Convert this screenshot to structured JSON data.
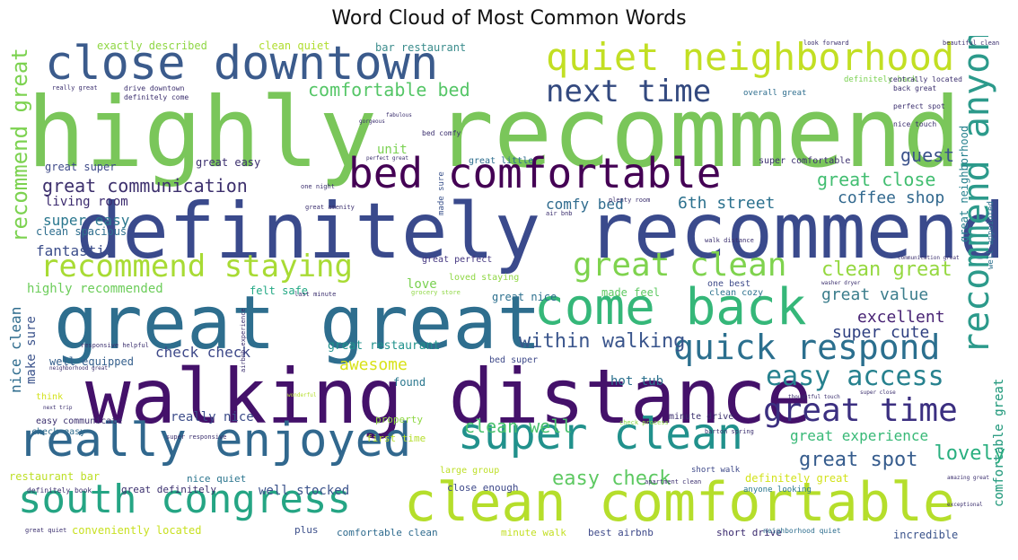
{
  "chart_data": {
    "type": "wordcloud",
    "title": "Word Cloud of Most Common Words",
    "background": "#ffffff",
    "colormap": "viridis",
    "words": [
      {
        "text": "highly recommend",
        "weight": 100,
        "color": "#7ac65a"
      },
      {
        "text": "definitely recommend",
        "weight": 80,
        "color": "#3a4a8c"
      },
      {
        "text": "walking distance",
        "weight": 80,
        "color": "#44116a"
      },
      {
        "text": "great great",
        "weight": 72,
        "color": "#2e6e8e"
      },
      {
        "text": "clean comfortable",
        "weight": 66,
        "color": "#b5de2b"
      },
      {
        "text": "close downtown",
        "weight": 54,
        "color": "#3b5b8c"
      },
      {
        "text": "come back",
        "weight": 54,
        "color": "#35b779"
      },
      {
        "text": "really enjoyed",
        "weight": 52,
        "color": "#31688e"
      },
      {
        "text": "bed comfortable",
        "weight": 46,
        "color": "#440154"
      },
      {
        "text": "super clean",
        "weight": 46,
        "color": "#21918c"
      },
      {
        "text": "quiet neighborhood",
        "weight": 42,
        "color": "#c2df23"
      },
      {
        "text": "south congress",
        "weight": 42,
        "color": "#25a584"
      },
      {
        "text": "recommend anyone",
        "weight": 40,
        "color": "#2c9a8b"
      },
      {
        "text": "recommend staying",
        "weight": 36,
        "color": "#a8db34"
      },
      {
        "text": "great clean",
        "weight": 36,
        "color": "#7fd34e"
      },
      {
        "text": "quick respond",
        "weight": 36,
        "color": "#2b6f8e"
      },
      {
        "text": "great time",
        "weight": 34,
        "color": "#3b2f80"
      },
      {
        "text": "next time",
        "weight": 32,
        "color": "#33497f"
      },
      {
        "text": "easy access",
        "weight": 30,
        "color": "#26818e"
      },
      {
        "text": "recommend great",
        "weight": 26,
        "color": "#7cd250"
      },
      {
        "text": "comfortable bed",
        "weight": 20,
        "color": "#55c667"
      },
      {
        "text": "great communication",
        "weight": 20,
        "color": "#3d306d"
      },
      {
        "text": "within walking",
        "weight": 22,
        "color": "#3a558c"
      },
      {
        "text": "easy check",
        "weight": 22,
        "color": "#5ec962"
      },
      {
        "text": "clean great",
        "weight": 20,
        "color": "#95d840"
      },
      {
        "text": "great close",
        "weight": 20,
        "color": "#42be71"
      },
      {
        "text": "great spot",
        "weight": 20,
        "color": "#365c8d"
      },
      {
        "text": "lovely",
        "weight": 20,
        "color": "#29af7f"
      },
      {
        "text": "clean well",
        "weight": 20,
        "color": "#4ac16d"
      },
      {
        "text": "guest",
        "weight": 18,
        "color": "#3b528b"
      },
      {
        "text": "excellent",
        "weight": 16,
        "color": "#482374"
      },
      {
        "text": "coffee shop",
        "weight": 16,
        "color": "#31688e"
      },
      {
        "text": "comfortable great",
        "weight": 14,
        "color": "#3fbc73"
      },
      {
        "text": "awesome",
        "weight": 18,
        "color": "#d8e219"
      },
      {
        "text": "super cute",
        "weight": 18,
        "color": "#2e3f80"
      },
      {
        "text": "great value",
        "weight": 18,
        "color": "#3b7d8c"
      },
      {
        "text": "great experience",
        "weight": 16,
        "color": "#38b977"
      },
      {
        "text": "6th street",
        "weight": 18,
        "color": "#2c718e"
      },
      {
        "text": "fantastic",
        "weight": 16,
        "color": "#3b4d8a"
      },
      {
        "text": "super easy",
        "weight": 16,
        "color": "#2a778e"
      },
      {
        "text": "comfy bed",
        "weight": 16,
        "color": "#2f6b8e"
      },
      {
        "text": "check check",
        "weight": 16,
        "color": "#3e4989"
      },
      {
        "text": "nice clean",
        "weight": 16,
        "color": "#2f6c8e"
      },
      {
        "text": "make sure",
        "weight": 14,
        "color": "#3a528b"
      },
      {
        "text": "living room",
        "weight": 14,
        "color": "#3b2a6e"
      },
      {
        "text": "love",
        "weight": 14,
        "color": "#7ad151"
      },
      {
        "text": "unit",
        "weight": 14,
        "color": "#7ad151"
      },
      {
        "text": "well stocked",
        "weight": 14,
        "color": "#3b528b"
      },
      {
        "text": "hot tub",
        "weight": 14,
        "color": "#2c718e"
      },
      {
        "text": "really nice",
        "weight": 14,
        "color": "#3d4d8a"
      },
      {
        "text": "highly recommended",
        "weight": 14,
        "color": "#6ccd5a"
      },
      {
        "text": "great restaurant",
        "weight": 13,
        "color": "#20928c"
      },
      {
        "text": "great super",
        "weight": 12,
        "color": "#3e4a89"
      },
      {
        "text": "great easy",
        "weight": 12,
        "color": "#3b2f6e"
      },
      {
        "text": "great neighborhood",
        "weight": 12,
        "color": "#26818e"
      },
      {
        "text": "comfortable great",
        "weight": 12,
        "color": "#2e9c86"
      },
      {
        "text": "made feel",
        "weight": 12,
        "color": "#5ec962"
      },
      {
        "text": "felt safe",
        "weight": 12,
        "color": "#22a884"
      },
      {
        "text": "restaurant bar",
        "weight": 12,
        "color": "#bddf26"
      },
      {
        "text": "conveniently located",
        "weight": 12,
        "color": "#c8e020"
      },
      {
        "text": "exactly described",
        "weight": 12,
        "color": "#8fd744"
      },
      {
        "text": "clean quiet",
        "weight": 12,
        "color": "#b0dd2f"
      },
      {
        "text": "bar restaurant",
        "weight": 12,
        "color": "#3a8c8c"
      },
      {
        "text": "clean spacious",
        "weight": 12,
        "color": "#2e6e8e"
      },
      {
        "text": "well equipped",
        "weight": 12,
        "color": "#35608d"
      },
      {
        "text": "great nice",
        "weight": 12,
        "color": "#2d708e"
      },
      {
        "text": "found",
        "weight": 12,
        "color": "#2a778e"
      },
      {
        "text": "definitely great",
        "weight": 12,
        "color": "#d2e21b"
      },
      {
        "text": "incredible",
        "weight": 12,
        "color": "#3a538b"
      },
      {
        "text": "comfortable clean",
        "weight": 11,
        "color": "#2f6b8e"
      },
      {
        "text": "nice quiet",
        "weight": 11,
        "color": "#2b758e"
      },
      {
        "text": "great definitely",
        "weight": 11,
        "color": "#3b2f6e"
      },
      {
        "text": "short drive",
        "weight": 11,
        "color": "#3a2a6e"
      },
      {
        "text": "best airbnb",
        "weight": 11,
        "color": "#3e4989"
      },
      {
        "text": "minute walk",
        "weight": 11,
        "color": "#c3df23"
      },
      {
        "text": "close enough",
        "weight": 11,
        "color": "#3e4989"
      },
      {
        "text": "plus",
        "weight": 11,
        "color": "#3c4f8a"
      },
      {
        "text": "first time",
        "weight": 11,
        "color": "#b5de2b"
      },
      {
        "text": "property",
        "weight": 11,
        "color": "#8fd744"
      },
      {
        "text": "clean cozy",
        "weight": 10,
        "color": "#2c718e"
      },
      {
        "text": "one best",
        "weight": 10,
        "color": "#3e4a89"
      },
      {
        "text": "loved staying",
        "weight": 10,
        "color": "#8fd744"
      },
      {
        "text": "great perfect",
        "weight": 10,
        "color": "#453781"
      },
      {
        "text": "check easy",
        "weight": 10,
        "color": "#2f6c8e"
      },
      {
        "text": "easy communicate",
        "weight": 10,
        "color": "#3b2f6e"
      },
      {
        "text": "minute drive",
        "weight": 10,
        "color": "#3b2f6e"
      },
      {
        "text": "large group",
        "weight": 10,
        "color": "#bddf26"
      },
      {
        "text": "great little",
        "weight": 10,
        "color": "#2e6e8e"
      },
      {
        "text": "super comfortable",
        "weight": 10,
        "color": "#3b2f6e"
      },
      {
        "text": "think",
        "weight": 10,
        "color": "#d2e21b"
      },
      {
        "text": "bed super",
        "weight": 10,
        "color": "#3e4989"
      },
      {
        "text": "short walk",
        "weight": 9,
        "color": "#3e4989"
      },
      {
        "text": "anyone looking",
        "weight": 9,
        "color": "#2a778e"
      },
      {
        "text": "overall great",
        "weight": 9,
        "color": "#2e6e8e"
      },
      {
        "text": "definitely back",
        "weight": 9,
        "color": "#7ad151"
      },
      {
        "text": "made sure",
        "weight": 9,
        "color": "#3a528b"
      },
      {
        "text": "well appointed",
        "weight": 9,
        "color": "#2c718e"
      },
      {
        "text": "neighborhood quiet",
        "weight": 8,
        "color": "#2e6e8e"
      },
      {
        "text": "great quiet",
        "weight": 7,
        "color": "#3b2f6e"
      },
      {
        "text": "drive downtown",
        "weight": 8,
        "color": "#3b2f6e"
      },
      {
        "text": "definitely come",
        "weight": 8,
        "color": "#3b2f6e"
      },
      {
        "text": "really great",
        "weight": 7,
        "color": "#3b2f6e"
      },
      {
        "text": "centrally located",
        "weight": 8,
        "color": "#3b2f6e"
      },
      {
        "text": "back great",
        "weight": 8,
        "color": "#3b2f6e"
      },
      {
        "text": "perfect spot",
        "weight": 8,
        "color": "#3b2f6e"
      },
      {
        "text": "nice touch",
        "weight": 8,
        "color": "#3b2f6e"
      },
      {
        "text": "bed comfy",
        "weight": 8,
        "color": "#3b2f6e"
      },
      {
        "text": "one night",
        "weight": 7,
        "color": "#3b2f6e"
      },
      {
        "text": "great amenity",
        "weight": 7,
        "color": "#3b2f6e"
      },
      {
        "text": "air bnb",
        "weight": 7,
        "color": "#3b2f6e"
      },
      {
        "text": "plenty room",
        "weight": 7,
        "color": "#3b2f6e"
      },
      {
        "text": "definitely book",
        "weight": 8,
        "color": "#3b2f6e"
      },
      {
        "text": "super responsive",
        "weight": 7,
        "color": "#3b2f6e"
      },
      {
        "text": "beautiful clean",
        "weight": 7,
        "color": "#3b2f6e"
      },
      {
        "text": "look forward",
        "weight": 7,
        "color": "#3b2f6e"
      },
      {
        "text": "grocery store",
        "weight": 7,
        "color": "#8fd744"
      },
      {
        "text": "last minute",
        "weight": 7,
        "color": "#3b2f6e"
      },
      {
        "text": "walk distance",
        "weight": 7,
        "color": "#3b2f6e"
      },
      {
        "text": "check process",
        "weight": 7,
        "color": "#8fd744"
      },
      {
        "text": "barton spring",
        "weight": 7,
        "color": "#3b2f6e"
      },
      {
        "text": "apartment clean",
        "weight": 7,
        "color": "#3b2f6e"
      },
      {
        "text": "responsive helpful",
        "weight": 7,
        "color": "#3b2f6e"
      },
      {
        "text": "airbnb experience",
        "weight": 7,
        "color": "#3b2f6e"
      },
      {
        "text": "neighborhood great",
        "weight": 6,
        "color": "#3b2f6e"
      },
      {
        "text": "amazing great",
        "weight": 6,
        "color": "#3b2f6e"
      },
      {
        "text": "communication great",
        "weight": 6,
        "color": "#3b2f6e"
      },
      {
        "text": "next trip",
        "weight": 6,
        "color": "#3b2f6e"
      },
      {
        "text": "super close",
        "weight": 6,
        "color": "#3b2f6e"
      },
      {
        "text": "thoughtful touch",
        "weight": 6,
        "color": "#3b2f6e"
      },
      {
        "text": "washer dryer",
        "weight": 6,
        "color": "#3b2f6e"
      },
      {
        "text": "perfect great",
        "weight": 6,
        "color": "#3b2f6e"
      },
      {
        "text": "wonderful",
        "weight": 6,
        "color": "#b5de2b"
      },
      {
        "text": "gorgeous",
        "weight": 6,
        "color": "#3b2f6e"
      },
      {
        "text": "fabulous",
        "weight": 6,
        "color": "#3b2f6e"
      },
      {
        "text": "exceptional",
        "weight": 6,
        "color": "#3b2f6e"
      }
    ]
  }
}
